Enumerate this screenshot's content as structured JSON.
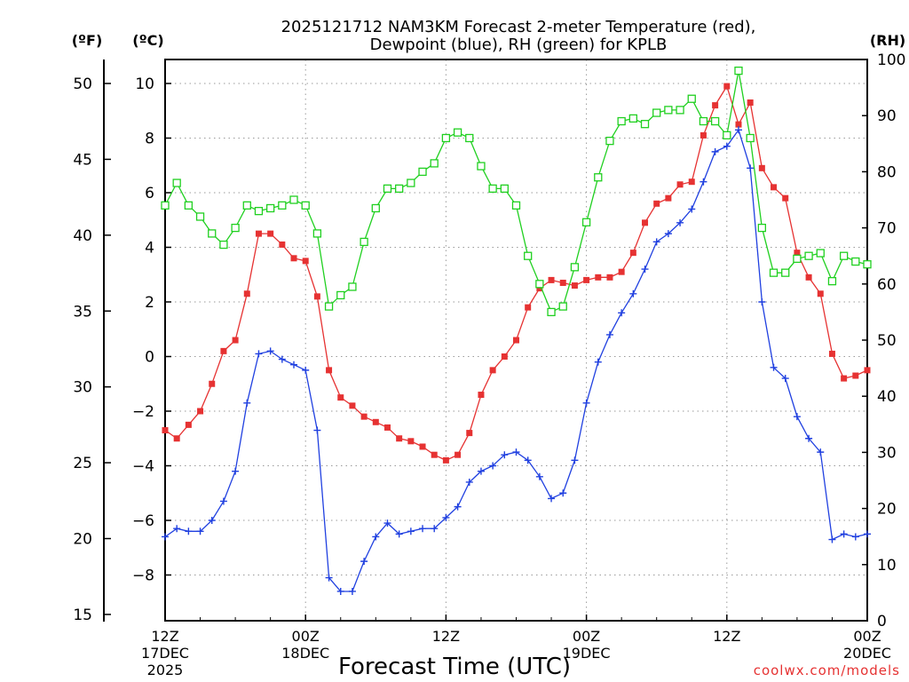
{
  "chart_data": {
    "type": "line",
    "title_line1": "2025121712 NAM3KM Forecast 2-meter Temperature (red),",
    "title_line2": "Dewpoint (blue), RH (green) for KPLB",
    "units": {
      "fahrenheit": "(ºF)",
      "celsius": "(ºC)",
      "rh": "(RH)"
    },
    "xlabel": "Forecast Time (UTC)",
    "credit": "coolwx.com/models",
    "x_range_hours": [
      0,
      36
    ],
    "celsius_range": [
      -9.5,
      11.0
    ],
    "rh_range": [
      0,
      100
    ],
    "celsius_ticks": [
      "10",
      "8",
      "6",
      "4",
      "2",
      "0",
      "−2",
      "−4",
      "−6",
      "−8"
    ],
    "fahrenheit_ticks": [
      "50",
      "45",
      "40",
      "35",
      "30",
      "25",
      "20",
      "15"
    ],
    "rh_ticks": [
      "100",
      "90",
      "80",
      "70",
      "60",
      "50",
      "40",
      "30",
      "20",
      "10",
      "0"
    ],
    "x_ticks": [
      {
        "hour": 0,
        "line1": "12Z",
        "line2": "17DEC",
        "line3": "2025"
      },
      {
        "hour": 7.2,
        "line1": "00Z",
        "line2": "18DEC",
        "line3": ""
      },
      {
        "hour": 14.4,
        "line1": "12Z",
        "line2": "",
        "line3": ""
      },
      {
        "hour": 21.6,
        "line1": "00Z",
        "line2": "19DEC",
        "line3": ""
      },
      {
        "hour": 28.8,
        "line1": "12Z",
        "line2": "",
        "line3": ""
      },
      {
        "hour": 36,
        "line1": "00Z",
        "line2": "20DEC",
        "line3": ""
      }
    ],
    "series": [
      {
        "name": "2-meter Temperature",
        "color": "#e63232",
        "marker": "filled-square",
        "x": [
          0,
          0.6,
          1.2,
          1.8,
          2.4,
          3,
          3.6,
          4.2,
          4.8,
          5.4,
          6,
          6.6,
          7.2,
          7.8,
          8.4,
          9,
          9.6,
          10.2,
          10.8,
          11.4,
          12,
          12.6,
          13.2,
          13.8,
          14.4,
          15,
          15.6,
          16.2,
          16.8,
          17.4,
          18,
          18.6,
          19.2,
          19.8,
          20.4,
          21,
          21.6,
          22.2,
          22.8,
          23.4,
          24,
          24.6,
          25.2,
          25.8,
          26.4,
          27,
          27.6,
          28.2,
          28.8,
          29.4,
          30,
          30.6,
          31.2,
          31.8,
          32.4,
          33,
          33.6,
          34.2,
          34.8,
          35.4,
          36
        ],
        "values": [
          -2.7,
          -3.0,
          -2.5,
          -2.0,
          -1.0,
          0.2,
          0.6,
          2.3,
          4.5,
          4.5,
          4.1,
          3.6,
          3.5,
          2.2,
          -0.5,
          -1.5,
          -1.8,
          -2.2,
          -2.4,
          -2.6,
          -3.0,
          -3.1,
          -3.3,
          -3.6,
          -3.8,
          -3.6,
          -2.8,
          -1.4,
          -0.5,
          0.0,
          0.6,
          1.8,
          2.5,
          2.8,
          2.7,
          2.6,
          2.8,
          2.9,
          2.9,
          3.1,
          3.8,
          4.9,
          5.6,
          5.8,
          6.3,
          6.4,
          8.1,
          9.2,
          9.9,
          8.5,
          9.3,
          6.9,
          6.2,
          5.8,
          3.8,
          2.9,
          2.3,
          0.1,
          -0.8,
          -0.7,
          -0.5
        ]
      },
      {
        "name": "Dewpoint",
        "color": "#2040e0",
        "marker": "plus",
        "x": [
          0,
          0.6,
          1.2,
          1.8,
          2.4,
          3,
          3.6,
          4.2,
          4.8,
          5.4,
          6,
          6.6,
          7.2,
          7.8,
          8.4,
          9,
          9.6,
          10.2,
          10.8,
          11.4,
          12,
          12.6,
          13.2,
          13.8,
          14.4,
          15,
          15.6,
          16.2,
          16.8,
          17.4,
          18,
          18.6,
          19.2,
          19.8,
          20.4,
          21,
          21.6,
          22.2,
          22.8,
          23.4,
          24,
          24.6,
          25.2,
          25.8,
          26.4,
          27,
          27.6,
          28.2,
          28.8,
          29.4,
          30,
          30.6,
          31.2,
          31.8,
          32.4,
          33,
          33.6,
          34.2,
          34.8,
          35.4,
          36
        ],
        "values": [
          -6.6,
          -6.3,
          -6.4,
          -6.4,
          -6.0,
          -5.3,
          -4.2,
          -1.7,
          0.1,
          0.2,
          -0.1,
          -0.3,
          -0.5,
          -2.7,
          -8.1,
          -8.6,
          -8.6,
          -7.5,
          -6.6,
          -6.1,
          -6.5,
          -6.4,
          -6.3,
          -6.3,
          -5.9,
          -5.5,
          -4.6,
          -4.2,
          -4.0,
          -3.6,
          -3.5,
          -3.8,
          -4.4,
          -5.2,
          -5.0,
          -3.8,
          -1.7,
          -0.2,
          0.8,
          1.6,
          2.3,
          3.2,
          4.2,
          4.5,
          4.9,
          5.4,
          6.4,
          7.5,
          7.7,
          8.3,
          6.9,
          2.0,
          -0.4,
          -0.8,
          -2.2,
          -3.0,
          -3.5,
          -6.7,
          -6.5,
          -6.6,
          -6.5
        ]
      },
      {
        "name": "Relative Humidity",
        "color": "#20d020",
        "marker": "open-square",
        "axis": "rh",
        "x": [
          0,
          0.6,
          1.2,
          1.8,
          2.4,
          3,
          3.6,
          4.2,
          4.8,
          5.4,
          6,
          6.6,
          7.2,
          7.8,
          8.4,
          9,
          9.6,
          10.2,
          10.8,
          11.4,
          12,
          12.6,
          13.2,
          13.8,
          14.4,
          15,
          15.6,
          16.2,
          16.8,
          17.4,
          18,
          18.6,
          19.2,
          19.8,
          20.4,
          21,
          21.6,
          22.2,
          22.8,
          23.4,
          24,
          24.6,
          25.2,
          25.8,
          26.4,
          27,
          27.6,
          28.2,
          28.8,
          29.4,
          30,
          30.6,
          31.2,
          31.8,
          32.4,
          33,
          33.6,
          34.2,
          34.8,
          35.4,
          36
        ],
        "values": [
          74,
          78,
          74,
          72,
          69,
          67,
          70,
          74,
          73,
          73.5,
          74,
          75,
          74,
          69,
          56,
          58,
          59.5,
          67.5,
          73.5,
          77,
          77,
          78,
          80,
          81.5,
          86,
          87,
          86,
          81,
          77,
          77,
          74,
          65,
          60,
          55,
          56,
          63,
          71,
          79,
          85.5,
          89,
          89.5,
          88.5,
          90.5,
          91,
          91,
          93,
          89,
          89,
          86.5,
          98,
          86,
          70,
          62,
          62,
          64.5,
          65,
          65.5,
          60.5,
          65,
          64,
          63.5
        ]
      }
    ]
  }
}
